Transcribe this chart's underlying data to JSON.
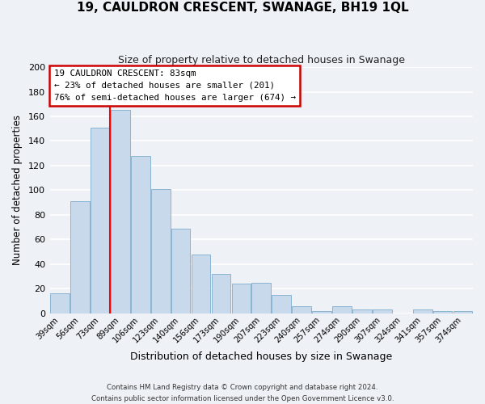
{
  "title": "19, CAULDRON CRESCENT, SWANAGE, BH19 1QL",
  "subtitle": "Size of property relative to detached houses in Swanage",
  "xlabel": "Distribution of detached houses by size in Swanage",
  "ylabel": "Number of detached properties",
  "bin_labels": [
    "39sqm",
    "56sqm",
    "73sqm",
    "89sqm",
    "106sqm",
    "123sqm",
    "140sqm",
    "156sqm",
    "173sqm",
    "190sqm",
    "207sqm",
    "223sqm",
    "240sqm",
    "257sqm",
    "274sqm",
    "290sqm",
    "307sqm",
    "324sqm",
    "341sqm",
    "357sqm",
    "374sqm"
  ],
  "bar_values": [
    16,
    91,
    151,
    165,
    128,
    101,
    69,
    48,
    32,
    24,
    25,
    15,
    6,
    2,
    6,
    3,
    3,
    0,
    3,
    2,
    2
  ],
  "bar_color": "#c8d9ec",
  "bar_edge_color": "#8ab4d4",
  "background_color": "#eef2f7",
  "grid_color": "#ffffff",
  "ylim": [
    0,
    200
  ],
  "yticks": [
    0,
    20,
    40,
    60,
    80,
    100,
    120,
    140,
    160,
    180,
    200
  ],
  "red_line_x": 2.5,
  "annotation_text_line1": "19 CAULDRON CRESCENT: 83sqm",
  "annotation_text_line2": "← 23% of detached houses are smaller (201)",
  "annotation_text_line3": "76% of semi-detached houses are larger (674) →",
  "annotation_box_color": "#ffffff",
  "annotation_box_edge": "#cc0000",
  "footnote1": "Contains HM Land Registry data © Crown copyright and database right 2024.",
  "footnote2": "Contains public sector information licensed under the Open Government Licence v3.0."
}
